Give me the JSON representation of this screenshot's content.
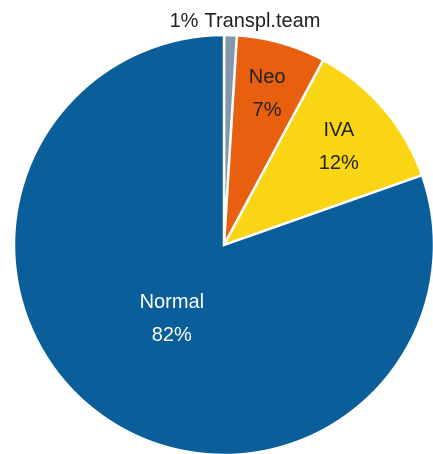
{
  "chart_data": {
    "type": "pie",
    "categories": [
      "Transpl.team",
      "Neo",
      "IVA",
      "Normal"
    ],
    "values": [
      1,
      7,
      12,
      82
    ],
    "value_labels": [
      "1%",
      "7%",
      "12%",
      "82%"
    ],
    "colors": [
      "#8496a9",
      "#e8600f",
      "#fad514",
      "#0a5e9a"
    ]
  }
}
